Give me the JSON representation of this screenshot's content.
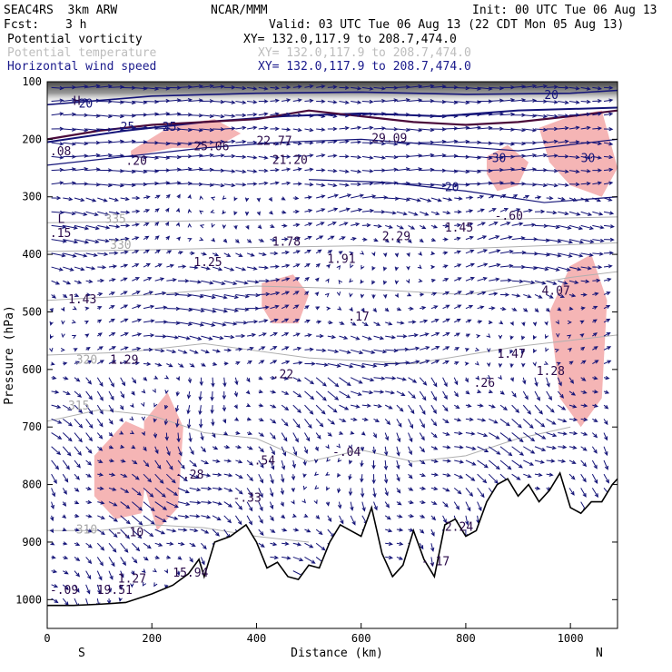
{
  "header": {
    "model": "SEAC4RS  3km ARW",
    "org": "NCAR/MMM",
    "init": "Init: 00 UTC Tue 06 Aug 13",
    "fcst_label": "Fcst:",
    "fcst_value": "3 h",
    "valid": "Valid: 03 UTC Tue 06 Aug 13 (22 CDT Mon 05 Aug 13)"
  },
  "legend": [
    {
      "name": "Potential vorticity",
      "xy": "XY= 132.0,117.9 to 208.7,474.0",
      "color": "#000000"
    },
    {
      "name": "Potential temperature",
      "xy": "XY= 132.0,117.9 to 208.7,474.0",
      "color": "#bdbdbd"
    },
    {
      "name": "Horizontal wind speed",
      "xy": "XY= 132.0,117.9 to 208.7,474.0",
      "color": "#1a1a8c"
    }
  ],
  "chart_data": {
    "type": "cross-section",
    "xlabel": "Distance (km)",
    "ylabel": "Pressure (hPa)",
    "xlim": [
      0,
      1090
    ],
    "ylim": [
      1050,
      100
    ],
    "x_ticks": [
      "0",
      "200",
      "400",
      "600",
      "800",
      "1000"
    ],
    "x_tick_values": [
      0,
      200,
      400,
      600,
      800,
      1000
    ],
    "y_ticks": [
      "100",
      "200",
      "300",
      "400",
      "500",
      "600",
      "700",
      "800",
      "900",
      "1000"
    ],
    "y_tick_values": [
      100,
      200,
      300,
      400,
      500,
      600,
      700,
      800,
      900,
      1000
    ],
    "left_end": "S",
    "right_end": "N",
    "colors": {
      "pv_shade": "#f5b5b5",
      "pv_line": "#4a0a3a",
      "theta": "#b0b0b0",
      "wind": "#141478",
      "terrain": "#000000"
    },
    "terrain": {
      "x": [
        0,
        50,
        100,
        150,
        200,
        240,
        270,
        290,
        300,
        320,
        350,
        380,
        400,
        420,
        440,
        460,
        480,
        500,
        520,
        540,
        560,
        580,
        600,
        620,
        640,
        660,
        680,
        700,
        720,
        740,
        760,
        780,
        800,
        820,
        840,
        860,
        880,
        900,
        920,
        940,
        960,
        980,
        1000,
        1020,
        1040,
        1060,
        1080,
        1090
      ],
      "p": [
        1010,
        1010,
        1008,
        1005,
        990,
        975,
        955,
        930,
        960,
        900,
        890,
        870,
        900,
        945,
        935,
        960,
        965,
        940,
        945,
        900,
        870,
        880,
        890,
        840,
        920,
        960,
        940,
        880,
        930,
        960,
        870,
        860,
        890,
        880,
        830,
        800,
        790,
        820,
        800,
        830,
        810,
        780,
        840,
        850,
        830,
        830,
        800,
        790
      ]
    },
    "theta_contours": [
      {
        "label": "335",
        "x": [
          0,
          200,
          400,
          600,
          800,
          1090
        ],
        "p": [
          345,
          343,
          340,
          338,
          340,
          335
        ]
      },
      {
        "label": "330",
        "x": [
          0,
          200,
          400,
          600,
          800,
          1090
        ],
        "p": [
          395,
          392,
          388,
          385,
          390,
          380
        ]
      },
      {
        "label": "325",
        "x": [
          0,
          200,
          400,
          600,
          800,
          1000,
          1090
        ],
        "p": [
          480,
          470,
          455,
          460,
          470,
          440,
          430
        ]
      },
      {
        "label": "320",
        "x": [
          0,
          150,
          300,
          500,
          700,
          900,
          1090
        ],
        "p": [
          575,
          570,
          555,
          580,
          590,
          560,
          540
        ]
      },
      {
        "label": "315",
        "x": [
          0,
          100,
          200,
          300,
          400,
          500,
          600,
          700,
          800,
          900,
          1000
        ],
        "p": [
          690,
          670,
          680,
          710,
          720,
          760,
          740,
          760,
          750,
          720,
          700
        ]
      },
      {
        "label": "310",
        "x": [
          0,
          100,
          200,
          300,
          400,
          500
        ],
        "p": [
          880,
          880,
          870,
          875,
          890,
          900
        ]
      }
    ],
    "pv_shaded_regions": [
      {
        "x": [
          160,
          240,
          320,
          370,
          320,
          240,
          160
        ],
        "p": [
          220,
          175,
          165,
          190,
          215,
          215,
          230
        ]
      },
      {
        "x": [
          90,
          150,
          200,
          180,
          130,
          90
        ],
        "p": [
          750,
          690,
          710,
          850,
          860,
          820
        ]
      },
      {
        "x": [
          185,
          230,
          260,
          250,
          210,
          185
        ],
        "p": [
          690,
          640,
          700,
          840,
          880,
          800
        ]
      },
      {
        "x": [
          410,
          470,
          500,
          480,
          430,
          410
        ],
        "p": [
          450,
          435,
          470,
          520,
          520,
          490
        ]
      },
      {
        "x": [
          840,
          880,
          920,
          900,
          860,
          840
        ],
        "p": [
          230,
          210,
          240,
          280,
          290,
          260
        ]
      },
      {
        "x": [
          940,
          1000,
          1060,
          1090,
          1060,
          1000,
          960
        ],
        "p": [
          180,
          160,
          150,
          250,
          300,
          280,
          240
        ]
      },
      {
        "x": [
          960,
          1000,
          1040,
          1070,
          1060,
          1020,
          980
        ],
        "p": [
          500,
          420,
          400,
          480,
          650,
          700,
          650
        ]
      }
    ],
    "pv_labels": [
      {
        "text": "H",
        "x": 50,
        "p": 140
      },
      {
        "text": ".08",
        "x": 5,
        "p": 228
      },
      {
        "text": ".20",
        "x": 150,
        "p": 244
      },
      {
        "text": "L",
        "x": 20,
        "p": 345
      },
      {
        "text": ".15",
        "x": 5,
        "p": 370
      },
      {
        "text": "1.43",
        "x": 40,
        "p": 485
      },
      {
        "text": "1.29",
        "x": 120,
        "p": 590
      },
      {
        "text": "1.25",
        "x": 280,
        "p": 420
      },
      {
        "text": "1.78",
        "x": 430,
        "p": 385
      },
      {
        "text": "1.91",
        "x": 535,
        "p": 415
      },
      {
        "text": "2.29",
        "x": 640,
        "p": 375
      },
      {
        "text": "1.45",
        "x": 760,
        "p": 360
      },
      {
        "text": "-.60",
        "x": 855,
        "p": 340
      },
      {
        "text": "4.07",
        "x": 945,
        "p": 470
      },
      {
        "text": ".17",
        "x": 575,
        "p": 515
      },
      {
        "text": ".22",
        "x": 430,
        "p": 615
      },
      {
        "text": "1.47",
        "x": 860,
        "p": 580
      },
      {
        "text": ".26",
        "x": 815,
        "p": 630
      },
      {
        "text": "1.28",
        "x": 935,
        "p": 610
      },
      {
        "text": "-.04",
        "x": 545,
        "p": 750
      },
      {
        "text": ".54",
        "x": 395,
        "p": 765
      },
      {
        "text": "-.28",
        "x": 245,
        "p": 790
      },
      {
        "text": "-.33",
        "x": 355,
        "p": 830
      },
      {
        "text": "-.10",
        "x": 130,
        "p": 890
      },
      {
        "text": "2.24",
        "x": 760,
        "p": 880
      },
      {
        "text": "-.17",
        "x": 715,
        "p": 940
      },
      {
        "text": "1.27",
        "x": 135,
        "p": 970
      },
      {
        "text": "15.94",
        "x": 240,
        "p": 960
      },
      {
        "text": "19.51",
        "x": 95,
        "p": 990
      },
      {
        "text": "-.09",
        "x": 5,
        "p": 990
      },
      {
        "text": "25.06",
        "x": 280,
        "p": 219
      },
      {
        "text": "29.09",
        "x": 620,
        "p": 205
      },
      {
        "text": "21.20",
        "x": 430,
        "p": 243
      },
      {
        "text": "22.77",
        "x": 400,
        "p": 210
      }
    ],
    "wind_speed_labels": [
      {
        "text": "20",
        "x": 60,
        "p": 145
      },
      {
        "text": "25",
        "x": 140,
        "p": 185
      },
      {
        "text": "25",
        "x": 220,
        "p": 185
      },
      {
        "text": "30",
        "x": 850,
        "p": 240
      },
      {
        "text": "20",
        "x": 760,
        "p": 290
      },
      {
        "text": "20",
        "x": 950,
        "p": 130
      },
      {
        "text": "30",
        "x": 1020,
        "p": 240
      }
    ],
    "theta_label_positions": [
      {
        "text": "335",
        "x": 110,
        "p": 345
      },
      {
        "text": "330",
        "x": 120,
        "p": 390
      },
      {
        "text": "320",
        "x": 55,
        "p": 590
      },
      {
        "text": "315",
        "x": 40,
        "p": 670
      },
      {
        "text": "310",
        "x": 55,
        "p": 885
      }
    ]
  }
}
